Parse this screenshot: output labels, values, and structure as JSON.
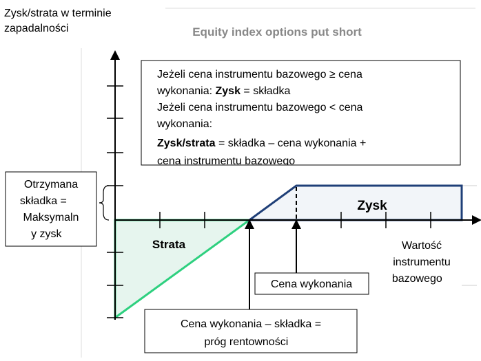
{
  "y_axis_label": [
    "Zysk/strata w terminie",
    "zapadalności"
  ],
  "title": "Equity index options put short",
  "info_box": {
    "lines": [
      [
        "Jeżeli cena instrumentu bazowego ≥ cena"
      ],
      [
        "wykonania: ",
        "Zysk",
        " = składka"
      ],
      [
        "Jeżeli cena instrumentu bazowego < cena"
      ],
      [
        "wykonania:"
      ],
      [
        "Zysk/strata",
        " = składka – cena wykonania +"
      ],
      [
        "cena instrumentu bazowego"
      ]
    ]
  },
  "premium_box": [
    "Otrzymana",
    "składka =",
    "Maksymaln",
    "y zysk"
  ],
  "loss_label": "Strata",
  "profit_label": "Zysk",
  "x_axis_label": [
    "Wartość",
    "instrumentu",
    "bazowego"
  ],
  "strike_box": "Cena wykonania",
  "breakeven_box": [
    "Cena wykonania – składka =",
    "próg rentowności"
  ]
}
